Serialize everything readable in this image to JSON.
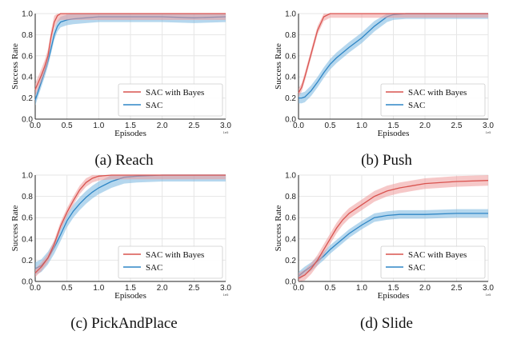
{
  "figure": {
    "captions": [
      "(a) Reach",
      "(b) Push",
      "(c) PickAndPlace",
      "(d) Slide"
    ]
  },
  "colors": {
    "sac_bayes": "#d9534f",
    "sac_bayes_band": "#ef9a9a",
    "sac": "#2f86c5",
    "sac_band": "#79b6e0",
    "grid": "#e6e6e6",
    "axis": "#222222"
  },
  "chart_data": [
    {
      "type": "line",
      "caption": "(a) Reach",
      "xlabel": "Episodes",
      "ylabel": "Success Rate",
      "xlim": [
        0,
        3.0
      ],
      "ylim": [
        0,
        1.0
      ],
      "xticks": [
        "0.0",
        "0.5",
        "1.0",
        "1.5",
        "2.0",
        "2.5",
        "3.0"
      ],
      "yticks": [
        "0.0",
        "0.2",
        "0.4",
        "0.6",
        "0.8",
        "1.0"
      ],
      "x_scale_note": "1e5",
      "legend": {
        "position": "lower-right",
        "entries": [
          "SAC with Bayes",
          "SAC"
        ]
      },
      "x": [
        0,
        0.05,
        0.1,
        0.15,
        0.2,
        0.25,
        0.3,
        0.35,
        0.4,
        0.5,
        0.6,
        0.8,
        1.0,
        1.5,
        2.0,
        2.5,
        3.0
      ],
      "series": [
        {
          "name": "SAC with Bayes",
          "values": [
            0.28,
            0.35,
            0.42,
            0.5,
            0.6,
            0.78,
            0.92,
            0.98,
            1.0,
            1.0,
            1.0,
            1.0,
            1.0,
            1.0,
            1.0,
            1.0,
            1.0
          ],
          "band": 0.06
        },
        {
          "name": "SAC",
          "values": [
            0.18,
            0.27,
            0.36,
            0.45,
            0.55,
            0.67,
            0.8,
            0.88,
            0.92,
            0.94,
            0.95,
            0.96,
            0.97,
            0.97,
            0.97,
            0.96,
            0.97
          ],
          "band": 0.05
        }
      ]
    },
    {
      "type": "line",
      "caption": "(b) Push",
      "xlabel": "Episodes",
      "ylabel": "Success Rate",
      "xlim": [
        0,
        3.0
      ],
      "ylim": [
        0,
        1.0
      ],
      "xticks": [
        "0.0",
        "0.5",
        "1.0",
        "1.5",
        "2.0",
        "2.5",
        "3.0"
      ],
      "yticks": [
        "0.0",
        "0.2",
        "0.4",
        "0.6",
        "0.8",
        "1.0"
      ],
      "x_scale_note": "1e5",
      "legend": {
        "position": "lower-right",
        "entries": [
          "SAC with Bayes",
          "SAC"
        ]
      },
      "x": [
        0,
        0.05,
        0.1,
        0.2,
        0.3,
        0.4,
        0.5,
        0.6,
        0.8,
        1.0,
        1.2,
        1.4,
        1.5,
        1.7,
        2.0,
        2.5,
        3.0
      ],
      "series": [
        {
          "name": "SAC with Bayes",
          "values": [
            0.25,
            0.3,
            0.4,
            0.62,
            0.84,
            0.97,
            1.0,
            1.0,
            1.0,
            1.0,
            1.0,
            1.0,
            1.0,
            1.0,
            1.0,
            1.0,
            1.0
          ],
          "band": 0.04
        },
        {
          "name": "SAC",
          "values": [
            0.2,
            0.2,
            0.21,
            0.27,
            0.35,
            0.44,
            0.52,
            0.58,
            0.68,
            0.77,
            0.88,
            0.97,
            0.99,
            1.0,
            1.0,
            1.0,
            1.0
          ],
          "band": 0.05
        }
      ]
    },
    {
      "type": "line",
      "caption": "(c) PickAndPlace",
      "xlabel": "Episodes",
      "ylabel": "Success Rate",
      "xlim": [
        0,
        3.0
      ],
      "ylim": [
        0,
        1.0
      ],
      "xticks": [
        "0.0",
        "0.5",
        "1.0",
        "1.5",
        "2.0",
        "2.5",
        "3.0"
      ],
      "yticks": [
        "0.0",
        "0.2",
        "0.4",
        "0.6",
        "0.8",
        "1.0"
      ],
      "x_scale_note": "1e5",
      "legend": {
        "position": "lower-right",
        "entries": [
          "SAC with Bayes",
          "SAC"
        ]
      },
      "x": [
        0,
        0.1,
        0.2,
        0.3,
        0.4,
        0.5,
        0.6,
        0.7,
        0.8,
        0.9,
        1.0,
        1.2,
        1.4,
        1.6,
        2.0,
        2.5,
        3.0
      ],
      "series": [
        {
          "name": "SAC with Bayes",
          "values": [
            0.08,
            0.14,
            0.22,
            0.35,
            0.52,
            0.65,
            0.76,
            0.86,
            0.93,
            0.97,
            0.99,
            1.0,
            1.0,
            1.0,
            1.0,
            1.0,
            1.0
          ],
          "band": 0.04
        },
        {
          "name": "SAC",
          "values": [
            0.12,
            0.15,
            0.22,
            0.32,
            0.44,
            0.57,
            0.66,
            0.73,
            0.79,
            0.84,
            0.88,
            0.94,
            0.98,
            0.99,
            1.0,
            1.0,
            1.0
          ],
          "band": 0.06
        }
      ]
    },
    {
      "type": "line",
      "caption": "(d) Slide",
      "xlabel": "Episodes",
      "ylabel": "Success Rate",
      "xlim": [
        0,
        3.0
      ],
      "ylim": [
        0,
        1.0
      ],
      "xticks": [
        "0.0",
        "0.5",
        "1.0",
        "1.5",
        "2.0",
        "2.5",
        "3.0"
      ],
      "yticks": [
        "0.0",
        "0.2",
        "0.4",
        "0.6",
        "0.8",
        "1.0"
      ],
      "x_scale_note": "1e5",
      "legend": {
        "position": "lower-right",
        "entries": [
          "SAC with Bayes",
          "SAC"
        ]
      },
      "x": [
        0,
        0.1,
        0.2,
        0.3,
        0.4,
        0.5,
        0.6,
        0.7,
        0.8,
        1.0,
        1.2,
        1.4,
        1.6,
        1.8,
        2.0,
        2.5,
        3.0
      ],
      "series": [
        {
          "name": "SAC with Bayes",
          "values": [
            0.03,
            0.06,
            0.12,
            0.2,
            0.3,
            0.4,
            0.5,
            0.58,
            0.64,
            0.72,
            0.8,
            0.85,
            0.88,
            0.9,
            0.92,
            0.94,
            0.95
          ],
          "band": 0.05
        },
        {
          "name": "SAC",
          "values": [
            0.05,
            0.1,
            0.14,
            0.19,
            0.24,
            0.3,
            0.35,
            0.4,
            0.45,
            0.53,
            0.6,
            0.62,
            0.63,
            0.63,
            0.63,
            0.64,
            0.64
          ],
          "band": 0.04
        }
      ]
    }
  ]
}
